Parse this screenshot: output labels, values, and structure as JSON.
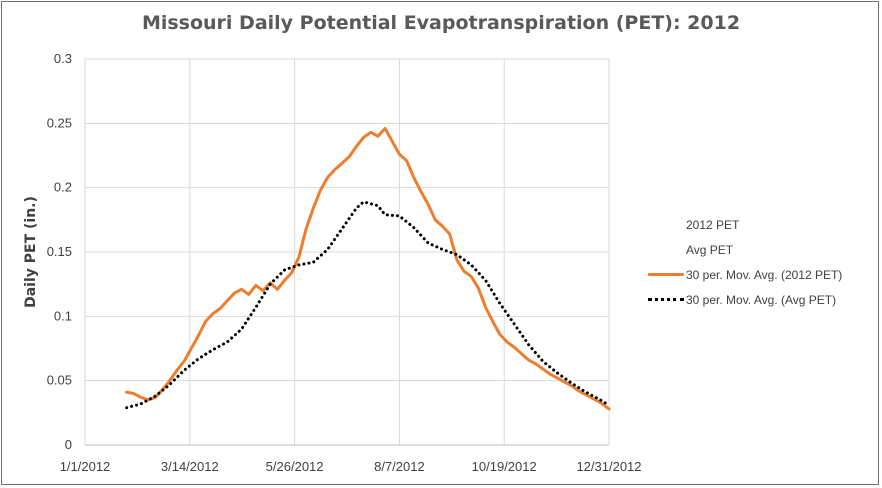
{
  "chart_data": {
    "type": "line",
    "title": "Missouri Daily Potential Evapotranspiration (PET): 2012",
    "xlabel": "",
    "ylabel": "Daily PET (in.)",
    "x_domain": [
      "2012-01-01",
      "2012-12-31"
    ],
    "ylim": [
      0,
      0.3
    ],
    "y_ticks": [
      "0",
      "0.05",
      "0.1",
      "0.15",
      "0.2",
      "0.25",
      "0.3"
    ],
    "x_ticks": [
      {
        "label": "1/1/2012",
        "date": "2012-01-01"
      },
      {
        "label": "3/14/2012",
        "date": "2012-03-14"
      },
      {
        "label": "5/26/2012",
        "date": "2012-05-26"
      },
      {
        "label": "8/7/2012",
        "date": "2012-08-07"
      },
      {
        "label": "10/19/2012",
        "date": "2012-10-19"
      },
      {
        "label": "12/31/2012",
        "date": "2012-12-31"
      }
    ],
    "grid": true,
    "legend_position": "right",
    "legend": [
      "2012 PET",
      "Avg PET",
      "30 per. Mov. Avg. (2012 PET)",
      "30 per. Mov. Avg. (Avg PET)"
    ],
    "series": [
      {
        "name": "30 per. Mov. Avg. (2012 PET)",
        "color": "#ed7d31",
        "style": "solid",
        "points": [
          [
            "2012-01-30",
            0.041
          ],
          [
            "2012-02-04",
            0.04
          ],
          [
            "2012-02-09",
            0.037
          ],
          [
            "2012-02-14",
            0.035
          ],
          [
            "2012-02-19",
            0.037
          ],
          [
            "2012-02-24",
            0.043
          ],
          [
            "2012-02-29",
            0.05
          ],
          [
            "2012-03-05",
            0.058
          ],
          [
            "2012-03-10",
            0.065
          ],
          [
            "2012-03-15",
            0.075
          ],
          [
            "2012-03-20",
            0.085
          ],
          [
            "2012-03-25",
            0.096
          ],
          [
            "2012-03-30",
            0.102
          ],
          [
            "2012-04-04",
            0.106
          ],
          [
            "2012-04-09",
            0.112
          ],
          [
            "2012-04-14",
            0.118
          ],
          [
            "2012-04-19",
            0.121
          ],
          [
            "2012-04-24",
            0.117
          ],
          [
            "2012-04-29",
            0.124
          ],
          [
            "2012-05-04",
            0.12
          ],
          [
            "2012-05-09",
            0.126
          ],
          [
            "2012-05-14",
            0.121
          ],
          [
            "2012-05-19",
            0.128
          ],
          [
            "2012-05-24",
            0.134
          ],
          [
            "2012-05-29",
            0.146
          ],
          [
            "2012-06-03",
            0.168
          ],
          [
            "2012-06-08",
            0.184
          ],
          [
            "2012-06-13",
            0.198
          ],
          [
            "2012-06-18",
            0.208
          ],
          [
            "2012-06-23",
            0.214
          ],
          [
            "2012-06-28",
            0.219
          ],
          [
            "2012-07-03",
            0.224
          ],
          [
            "2012-07-08",
            0.232
          ],
          [
            "2012-07-13",
            0.239
          ],
          [
            "2012-07-18",
            0.243
          ],
          [
            "2012-07-23",
            0.24
          ],
          [
            "2012-07-28",
            0.246
          ],
          [
            "2012-08-02",
            0.236
          ],
          [
            "2012-08-07",
            0.226
          ],
          [
            "2012-08-12",
            0.221
          ],
          [
            "2012-08-17",
            0.208
          ],
          [
            "2012-08-22",
            0.197
          ],
          [
            "2012-08-27",
            0.187
          ],
          [
            "2012-09-01",
            0.175
          ],
          [
            "2012-09-06",
            0.17
          ],
          [
            "2012-09-11",
            0.164
          ],
          [
            "2012-09-16",
            0.144
          ],
          [
            "2012-09-21",
            0.135
          ],
          [
            "2012-09-26",
            0.131
          ],
          [
            "2012-10-01",
            0.122
          ],
          [
            "2012-10-06",
            0.107
          ],
          [
            "2012-10-11",
            0.096
          ],
          [
            "2012-10-16",
            0.086
          ],
          [
            "2012-10-21",
            0.08
          ],
          [
            "2012-10-26",
            0.076
          ],
          [
            "2012-10-31",
            0.071
          ],
          [
            "2012-11-05",
            0.066
          ],
          [
            "2012-11-10",
            0.063
          ],
          [
            "2012-11-15",
            0.059
          ],
          [
            "2012-11-20",
            0.055
          ],
          [
            "2012-11-25",
            0.052
          ],
          [
            "2012-11-30",
            0.049
          ],
          [
            "2012-12-05",
            0.046
          ],
          [
            "2012-12-10",
            0.042
          ],
          [
            "2012-12-15",
            0.039
          ],
          [
            "2012-12-20",
            0.036
          ],
          [
            "2012-12-25",
            0.033
          ],
          [
            "2012-12-31",
            0.028
          ]
        ]
      },
      {
        "name": "30 per. Mov. Avg. (Avg PET)",
        "color": "#000000",
        "style": "dotted",
        "points": [
          [
            "2012-01-30",
            0.029
          ],
          [
            "2012-02-09",
            0.032
          ],
          [
            "2012-02-19",
            0.038
          ],
          [
            "2012-02-29",
            0.047
          ],
          [
            "2012-03-10",
            0.058
          ],
          [
            "2012-03-20",
            0.067
          ],
          [
            "2012-03-30",
            0.074
          ],
          [
            "2012-04-09",
            0.08
          ],
          [
            "2012-04-19",
            0.09
          ],
          [
            "2012-04-29",
            0.107
          ],
          [
            "2012-05-09",
            0.125
          ],
          [
            "2012-05-19",
            0.136
          ],
          [
            "2012-05-29",
            0.14
          ],
          [
            "2012-06-08",
            0.142
          ],
          [
            "2012-06-18",
            0.152
          ],
          [
            "2012-06-28",
            0.168
          ],
          [
            "2012-07-08",
            0.184
          ],
          [
            "2012-07-13",
            0.189
          ],
          [
            "2012-07-23",
            0.186
          ],
          [
            "2012-07-28",
            0.179
          ],
          [
            "2012-08-07",
            0.178
          ],
          [
            "2012-08-17",
            0.169
          ],
          [
            "2012-08-27",
            0.157
          ],
          [
            "2012-09-06",
            0.152
          ],
          [
            "2012-09-16",
            0.148
          ],
          [
            "2012-09-26",
            0.14
          ],
          [
            "2012-10-06",
            0.128
          ],
          [
            "2012-10-16",
            0.11
          ],
          [
            "2012-10-26",
            0.094
          ],
          [
            "2012-11-05",
            0.078
          ],
          [
            "2012-11-15",
            0.065
          ],
          [
            "2012-11-25",
            0.056
          ],
          [
            "2012-12-05",
            0.048
          ],
          [
            "2012-12-15",
            0.041
          ],
          [
            "2012-12-25",
            0.035
          ],
          [
            "2012-12-31",
            0.031
          ]
        ]
      }
    ]
  }
}
